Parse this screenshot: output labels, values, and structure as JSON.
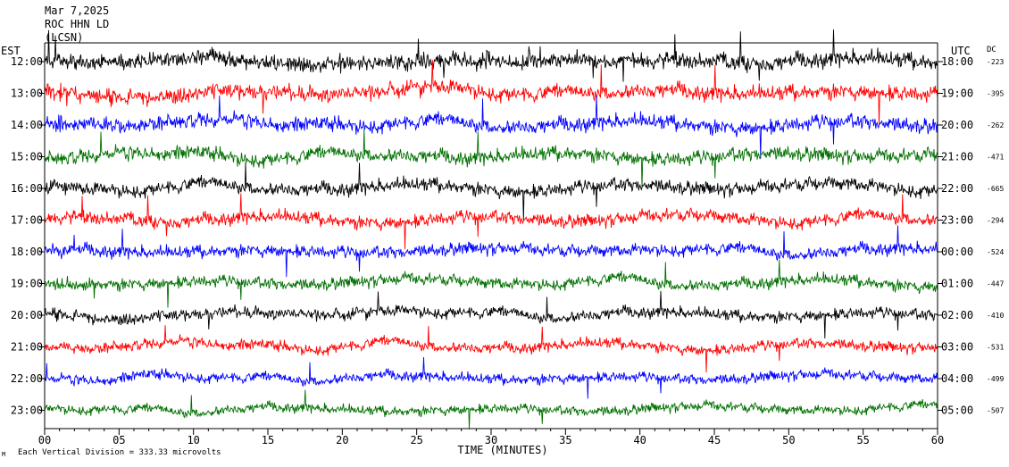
{
  "header": {
    "date": "Mar 7,2025",
    "station": "ROC HHN LD",
    "filter": "(LCSN)"
  },
  "left_axis_label": "EST",
  "right_axis_label": "UTC",
  "dc_label": "DC",
  "footer_scale": "Each Vertical Division =  333.33 microvolts",
  "chart_data": {
    "type": "line",
    "xlabel": "TIME (MINUTES)",
    "xlim": [
      0,
      60
    ],
    "x_ticks": [
      "00",
      "05",
      "10",
      "15",
      "20",
      "25",
      "30",
      "35",
      "40",
      "45",
      "50",
      "55",
      "60"
    ],
    "trace_colors": [
      "#000000",
      "#ff0000",
      "#0000ff",
      "#007000"
    ],
    "rows": [
      {
        "est": "12:00",
        "utc": "18:00",
        "dc": "-223",
        "color": "#000000"
      },
      {
        "est": "13:00",
        "utc": "19:00",
        "dc": "-395",
        "color": "#ff0000"
      },
      {
        "est": "14:00",
        "utc": "20:00",
        "dc": "-262",
        "color": "#0000ff"
      },
      {
        "est": "15:00",
        "utc": "21:00",
        "dc": "-471",
        "color": "#007000"
      },
      {
        "est": "16:00",
        "utc": "22:00",
        "dc": "-665",
        "color": "#000000"
      },
      {
        "est": "17:00",
        "utc": "23:00",
        "dc": "-294",
        "color": "#ff0000"
      },
      {
        "est": "18:00",
        "utc": "00:00",
        "dc": "-524",
        "color": "#0000ff"
      },
      {
        "est": "19:00",
        "utc": "01:00",
        "dc": "-447",
        "color": "#007000"
      },
      {
        "est": "20:00",
        "utc": "02:00",
        "dc": "-410",
        "color": "#000000"
      },
      {
        "est": "21:00",
        "utc": "03:00",
        "dc": "-531",
        "color": "#ff0000"
      },
      {
        "est": "22:00",
        "utc": "04:00",
        "dc": "-499",
        "color": "#0000ff"
      },
      {
        "est": "23:00",
        "utc": "05:00",
        "dc": "-507",
        "color": "#007000"
      }
    ]
  }
}
